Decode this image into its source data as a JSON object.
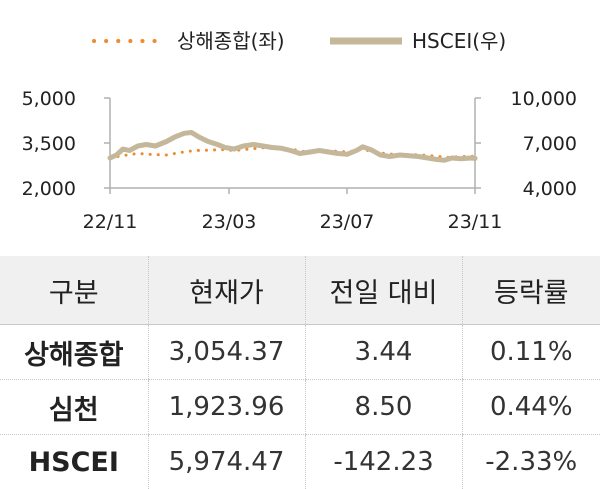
{
  "chart_data": {
    "type": "line",
    "x_ticks": [
      "22/11",
      "23/03",
      "23/07",
      "23/11"
    ],
    "x_range": [
      "2022-11-01",
      "2023-11-30"
    ],
    "y_left": {
      "ticks": [
        "5,000",
        "3,500",
        "2,000"
      ],
      "range": [
        2000,
        5000
      ]
    },
    "y_right": {
      "ticks": [
        "10,000",
        "7,000",
        "4,000"
      ],
      "range": [
        4000,
        10000
      ]
    },
    "grid": false,
    "legend_position": "top",
    "series": [
      {
        "name": "상해종합(좌)",
        "axis": "left",
        "style": "dotted",
        "color": "#f08a2e",
        "points": [
          [
            "2022-11-01",
            3000
          ],
          [
            "2022-11-15",
            3080
          ],
          [
            "2022-12-01",
            3150
          ],
          [
            "2022-12-15",
            3120
          ],
          [
            "2023-01-01",
            3100
          ],
          [
            "2023-01-15",
            3180
          ],
          [
            "2023-02-01",
            3250
          ],
          [
            "2023-02-15",
            3260
          ],
          [
            "2023-03-01",
            3280
          ],
          [
            "2023-03-15",
            3250
          ],
          [
            "2023-04-01",
            3300
          ],
          [
            "2023-04-15",
            3340
          ],
          [
            "2023-05-01",
            3320
          ],
          [
            "2023-05-15",
            3300
          ],
          [
            "2023-06-01",
            3200
          ],
          [
            "2023-06-15",
            3250
          ],
          [
            "2023-07-01",
            3230
          ],
          [
            "2023-07-15",
            3200
          ],
          [
            "2023-08-01",
            3290
          ],
          [
            "2023-08-15",
            3180
          ],
          [
            "2023-09-01",
            3130
          ],
          [
            "2023-09-15",
            3110
          ],
          [
            "2023-10-01",
            3110
          ],
          [
            "2023-10-15",
            3070
          ],
          [
            "2023-11-01",
            3020
          ],
          [
            "2023-11-15",
            3050
          ],
          [
            "2023-11-30",
            3054
          ]
        ]
      },
      {
        "name": "HSCEI(우)",
        "axis": "right",
        "style": "solid",
        "color": "#c4b79a",
        "points": [
          [
            "2022-11-01",
            6000
          ],
          [
            "2022-11-08",
            6200
          ],
          [
            "2022-11-15",
            6600
          ],
          [
            "2022-11-22",
            6500
          ],
          [
            "2022-12-01",
            6800
          ],
          [
            "2022-12-10",
            6900
          ],
          [
            "2022-12-20",
            6800
          ],
          [
            "2023-01-01",
            7100
          ],
          [
            "2023-01-10",
            7400
          ],
          [
            "2023-01-20",
            7650
          ],
          [
            "2023-01-28",
            7700
          ],
          [
            "2023-02-05",
            7400
          ],
          [
            "2023-02-15",
            7100
          ],
          [
            "2023-02-25",
            6900
          ],
          [
            "2023-03-05",
            6700
          ],
          [
            "2023-03-15",
            6600
          ],
          [
            "2023-03-25",
            6800
          ],
          [
            "2023-04-05",
            6900
          ],
          [
            "2023-04-15",
            6800
          ],
          [
            "2023-04-25",
            6700
          ],
          [
            "2023-05-05",
            6650
          ],
          [
            "2023-05-15",
            6500
          ],
          [
            "2023-05-25",
            6300
          ],
          [
            "2023-06-05",
            6400
          ],
          [
            "2023-06-15",
            6500
          ],
          [
            "2023-06-25",
            6400
          ],
          [
            "2023-07-05",
            6300
          ],
          [
            "2023-07-15",
            6250
          ],
          [
            "2023-07-25",
            6500
          ],
          [
            "2023-08-01",
            6750
          ],
          [
            "2023-08-10",
            6550
          ],
          [
            "2023-08-20",
            6200
          ],
          [
            "2023-08-30",
            6100
          ],
          [
            "2023-09-10",
            6200
          ],
          [
            "2023-09-20",
            6150
          ],
          [
            "2023-09-30",
            6100
          ],
          [
            "2023-10-10",
            6000
          ],
          [
            "2023-10-20",
            5900
          ],
          [
            "2023-10-28",
            5850
          ],
          [
            "2023-11-05",
            6000
          ],
          [
            "2023-11-15",
            5950
          ],
          [
            "2023-11-25",
            6000
          ],
          [
            "2023-11-30",
            5974
          ]
        ]
      }
    ]
  },
  "table": {
    "headers": [
      "구분",
      "현재가",
      "전일 대비",
      "등락률"
    ],
    "rows": [
      [
        "상해종합",
        "3,054.37",
        "3.44",
        "0.11%"
      ],
      [
        "심천",
        "1,923.96",
        "8.50",
        "0.44%"
      ],
      [
        "HSCEI",
        "5,974.47",
        "-142.23",
        "-2.33%"
      ]
    ]
  }
}
